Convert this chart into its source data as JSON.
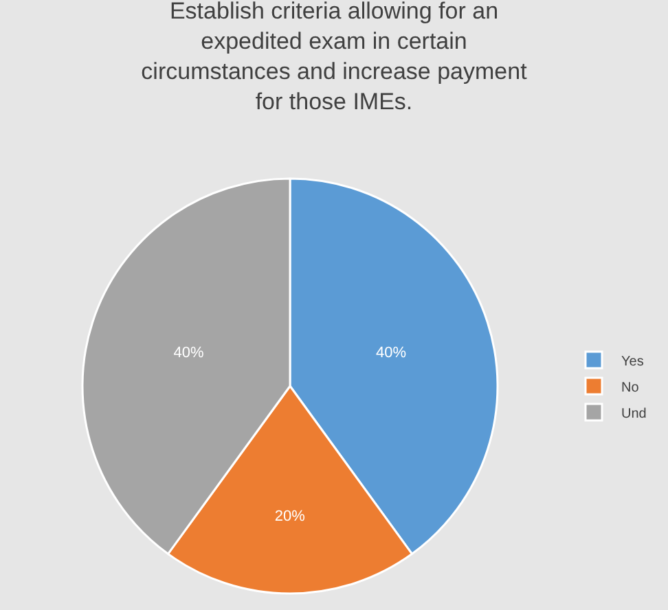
{
  "chart_data": {
    "type": "pie",
    "title": "Establish criteria allowing for an\nexpedited exam in certain\ncircumstances and increase payment\nfor those IMEs.",
    "categories": [
      "Yes",
      "No",
      "Und"
    ],
    "values": [
      40,
      20,
      40
    ],
    "colors": [
      "#5b9bd5",
      "#ed7d31",
      "#a5a5a5"
    ],
    "value_labels": [
      "40%",
      "20%",
      "40%"
    ],
    "legend": "right"
  }
}
